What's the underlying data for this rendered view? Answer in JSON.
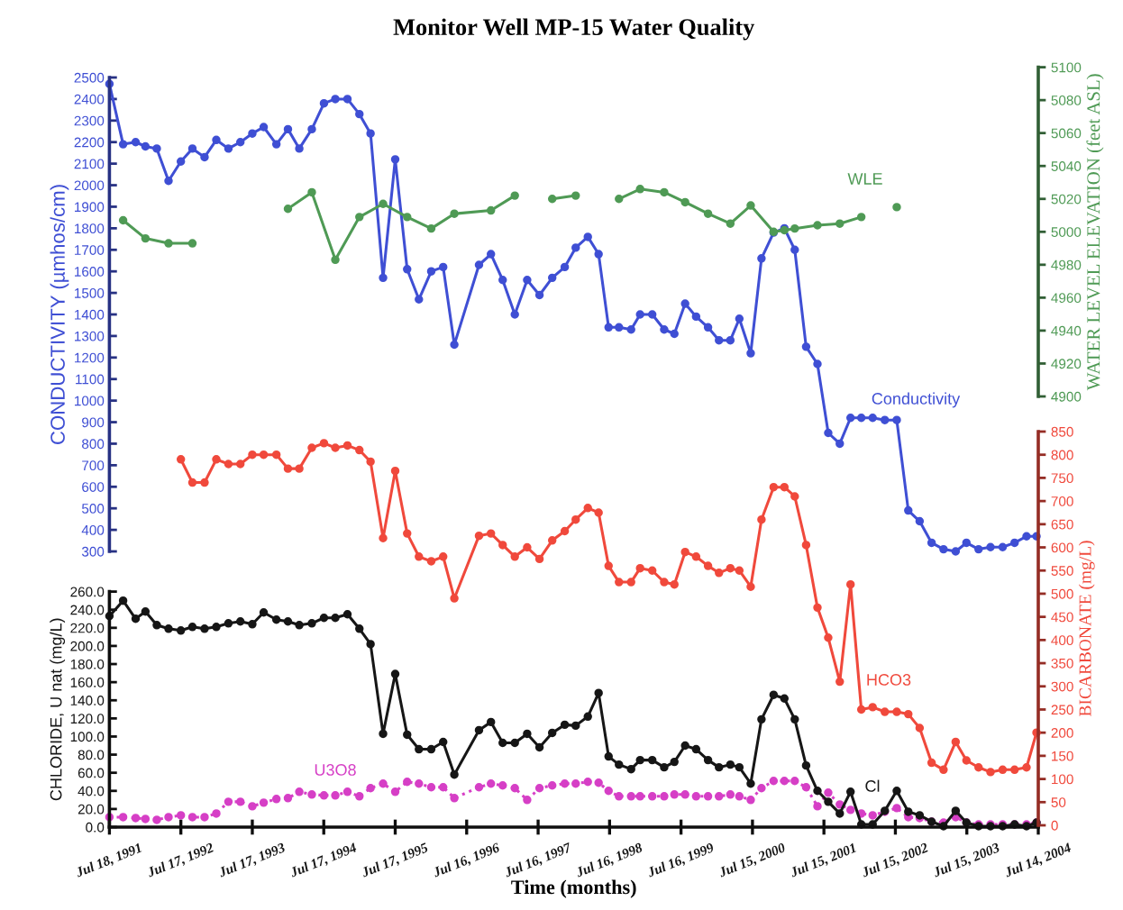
{
  "chart_data": [
    {
      "type": "line",
      "title": "Monitor Well MP-15 Water Quality",
      "ylabel": "CONDUCTIVITY (µmhos/cm)",
      "tick_labels": "y",
      "marker": "circle",
      "line_style": "solid",
      "x": [
        "1991-07-18",
        "1991-09-26",
        "1991-11-29",
        "1992-01-18",
        "1992-03-16",
        "1992-05-15",
        "1992-07-17",
        "1992-09-14",
        "1992-11-15",
        "1993-01-14",
        "1993-03-17",
        "1993-05-17",
        "1993-07-17",
        "1993-09-13",
        "1993-11-17",
        "1994-01-15",
        "1994-03-14",
        "1994-05-17",
        "1994-07-18",
        "1994-09-14",
        "1994-11-15",
        "1995-01-15",
        "1995-03-13",
        "1995-05-16",
        "1995-07-17",
        "1995-09-16",
        "1995-11-15",
        "1996-01-17",
        "1996-03-18",
        "1996-05-14",
        "1996-09-17",
        "1996-11-17",
        "1997-01-16",
        "1997-03-19",
        "1997-05-21",
        "1997-07-23",
        "1997-09-26",
        "1997-11-29",
        "1998-01-24",
        "1998-03-27",
        "1998-05-21",
        "1998-07-11",
        "1998-09-02",
        "1998-11-03",
        "1998-12-19",
        "1999-02-19",
        "1999-04-21",
        "1999-06-12",
        "1999-08-06",
        "1999-10-01",
        "1999-12-01",
        "2000-01-26",
        "2000-03-24",
        "2000-05-09",
        "2000-07-06",
        "2000-08-30",
        "2000-10-31",
        "2000-12-25",
        "2001-02-16",
        "2001-04-15",
        "2001-06-12",
        "2001-08-06",
        "2001-10-04",
        "2001-11-28",
        "2002-01-22",
        "2002-03-21",
        "2002-05-22",
        "2002-07-22",
        "2002-09-19",
        "2002-11-16",
        "2003-01-16",
        "2003-03-18",
        "2003-05-19",
        "2003-07-13",
        "2003-09-13",
        "2003-11-13",
        "2004-01-14",
        "2004-03-15",
        "2004-05-15",
        "2004-07-05"
      ],
      "xlim": [
        "1991-07-18",
        "2004-07-14"
      ],
      "ylim": [
        300,
        2500
      ],
      "yticks": [
        300,
        400,
        500,
        600,
        700,
        800,
        900,
        1000,
        1100,
        1200,
        1300,
        1400,
        1500,
        1600,
        1700,
        1800,
        1900,
        2000,
        2100,
        2200,
        2300,
        2400,
        2500
      ],
      "series": [
        {
          "name": "Conductivity",
          "color": "#3f4fd4",
          "values": [
            2470,
            2190,
            2200,
            2180,
            2170,
            2020,
            2110,
            2170,
            2130,
            2210,
            2170,
            2200,
            2240,
            2270,
            2190,
            2260,
            2170,
            2260,
            2380,
            2400,
            2400,
            2330,
            2240,
            1570,
            2120,
            1610,
            1470,
            1600,
            1620,
            1260,
            1630,
            1680,
            1560,
            1400,
            1560,
            1490,
            1570,
            1620,
            1710,
            1760,
            1680,
            1340,
            1340,
            1330,
            1400,
            1400,
            1330,
            1310,
            1450,
            1390,
            1340,
            1280,
            1280,
            1380,
            1220,
            1660,
            1780,
            1800,
            1700,
            1250,
            1170,
            850,
            800,
            920,
            920,
            920,
            910,
            910,
            490,
            440,
            340,
            310,
            300,
            340,
            310,
            320,
            320,
            340,
            370,
            370
          ]
        }
      ]
    },
    {
      "type": "line",
      "ylabel": "WATER LEVEL ELEVATION (feet ASL)",
      "tick_labels": "y",
      "marker": "circle",
      "line_style": "solid",
      "x": [
        "1991-09-26",
        "1992-01-18",
        "1992-05-15",
        "1992-09-14",
        "1993-05-17",
        "1994-01-15",
        "1994-05-17",
        "1994-09-14",
        "1995-01-15",
        "1995-05-16",
        "1995-09-16",
        "1996-01-17",
        "1996-05-14",
        "1996-11-17",
        "1997-03-19",
        "1997-07-23",
        "1997-09-26",
        "1998-01-24",
        "1998-05-21",
        "1998-09-02",
        "1998-12-19",
        "1999-04-21",
        "1999-08-06",
        "1999-12-01",
        "2000-03-24",
        "2000-07-06",
        "2000-10-31",
        "2000-12-25",
        "2001-02-16",
        "2001-06-12",
        "2001-10-04",
        "2002-01-22",
        "2002-03-21",
        "2002-07-22"
      ],
      "xlim": [
        "1991-07-18",
        "2004-07-14"
      ],
      "ylim": [
        4900,
        5100
      ],
      "yticks": [
        4900,
        4920,
        4940,
        4960,
        4980,
        5000,
        5020,
        5040,
        5060,
        5080,
        5100
      ],
      "series": [
        {
          "name": "WLE",
          "color": "#4f9a55",
          "values": [
            5007,
            4996,
            4993,
            4993,
            null,
            5014,
            5024,
            4983,
            5009,
            5017,
            5009,
            5002,
            5011,
            5013,
            5022,
            null,
            5020,
            5022,
            null,
            5020,
            5026,
            5024,
            5018,
            5011,
            5005,
            5016,
            5000,
            5001,
            5002,
            5004,
            5005,
            5009,
            null,
            5015
          ]
        }
      ]
    },
    {
      "type": "line",
      "xlabel": "Time (months)",
      "ylabel": "CHLORIDE, U nat (mg/L)",
      "marker": "circle",
      "line_style": "solid",
      "x": [
        "1991-07-18",
        "1991-09-26",
        "1991-11-29",
        "1992-01-18",
        "1992-03-16",
        "1992-05-15",
        "1992-07-17",
        "1992-09-14",
        "1992-11-15",
        "1993-01-14",
        "1993-03-17",
        "1993-05-17",
        "1993-07-17",
        "1993-09-13",
        "1993-11-17",
        "1994-01-15",
        "1994-03-14",
        "1994-05-17",
        "1994-07-18",
        "1994-09-14",
        "1994-11-15",
        "1995-01-15",
        "1995-03-13",
        "1995-05-16",
        "1995-07-17",
        "1995-09-16",
        "1995-11-15",
        "1996-01-17",
        "1996-03-18",
        "1996-05-14",
        "1996-09-17",
        "1996-11-17",
        "1997-01-16",
        "1997-03-19",
        "1997-05-21",
        "1997-07-23",
        "1997-09-26",
        "1997-11-29",
        "1998-01-24",
        "1998-03-27",
        "1998-05-21",
        "1998-07-11",
        "1998-09-02",
        "1998-11-03",
        "1998-12-19",
        "1999-02-19",
        "1999-04-21",
        "1999-06-12",
        "1999-08-06",
        "1999-10-01",
        "1999-12-01",
        "2000-01-26",
        "2000-03-24",
        "2000-05-09",
        "2000-07-06",
        "2000-08-30",
        "2000-10-31",
        "2000-12-25",
        "2001-02-16",
        "2001-04-15",
        "2001-06-12",
        "2001-08-06",
        "2001-10-04",
        "2001-11-28",
        "2002-01-22",
        "2002-03-21",
        "2002-05-22",
        "2002-07-22",
        "2002-09-19",
        "2002-11-16",
        "2003-01-16",
        "2003-03-18",
        "2003-05-19",
        "2003-07-13",
        "2003-09-13",
        "2003-11-13",
        "2004-01-14",
        "2004-03-15",
        "2004-05-15",
        "2004-07-05"
      ],
      "xlim": [
        "1991-07-18",
        "2004-07-14"
      ],
      "xticks": [
        {
          "value": "1991-07-18",
          "label": "Jul 18, 1991"
        },
        {
          "value": "1992-07-17",
          "label": "Jul 17, 1992"
        },
        {
          "value": "1993-07-17",
          "label": "Jul 17, 1993"
        },
        {
          "value": "1994-07-17",
          "label": "Jul 17, 1994"
        },
        {
          "value": "1995-07-17",
          "label": "Jul 17, 1995"
        },
        {
          "value": "1996-07-16",
          "label": "Jul 16, 1996"
        },
        {
          "value": "1997-07-16",
          "label": "Jul 16, 1997"
        },
        {
          "value": "1998-07-16",
          "label": "Jul 16, 1998"
        },
        {
          "value": "1999-07-16",
          "label": "Jul 16, 1999"
        },
        {
          "value": "2000-07-15",
          "label": "Jul 15, 2000"
        },
        {
          "value": "2001-07-15",
          "label": "Jul 15, 2001"
        },
        {
          "value": "2002-07-15",
          "label": "Jul 15, 2002"
        },
        {
          "value": "2003-07-15",
          "label": "Jul 15, 2003"
        },
        {
          "value": "2004-07-14",
          "label": "Jul 14, 2004"
        }
      ],
      "ylim": [
        0,
        260
      ],
      "yticks": [
        {
          "value": 0,
          "label": "0.0"
        },
        {
          "value": 20,
          "label": "20.0"
        },
        {
          "value": 40,
          "label": "40.0"
        },
        {
          "value": 60,
          "label": "60.0"
        },
        {
          "value": 80,
          "label": "80.0"
        },
        {
          "value": 100,
          "label": "100.0"
        },
        {
          "value": 120,
          "label": "120.0"
        },
        {
          "value": 140,
          "label": "140.0"
        },
        {
          "value": 160,
          "label": "160.0"
        },
        {
          "value": 180,
          "label": "180.0"
        },
        {
          "value": 200,
          "label": "200.0"
        },
        {
          "value": 220,
          "label": "220.0"
        },
        {
          "value": 240,
          "label": "240.0"
        },
        {
          "value": 260,
          "label": "260.0"
        }
      ],
      "series": [
        {
          "name": "U3O8",
          "color": "#d63fc6",
          "line_style": "dotted",
          "values": [
            11,
            11,
            10,
            9,
            8,
            11,
            13,
            11,
            11,
            15,
            28,
            28,
            23,
            27,
            31,
            32,
            39,
            36,
            35,
            35,
            39,
            34,
            43,
            48,
            39,
            50,
            48,
            44,
            44,
            32,
            44,
            48,
            46,
            43,
            30,
            43,
            46,
            48,
            48,
            50,
            49,
            40,
            34,
            34,
            34,
            34,
            34,
            36,
            36,
            34,
            34,
            34,
            36,
            34,
            30,
            43,
            51,
            51,
            51,
            44,
            23,
            38,
            25,
            19,
            15,
            13,
            17,
            21,
            11,
            10,
            6,
            5,
            11,
            5,
            3,
            3,
            3,
            3,
            3,
            5
          ]
        },
        {
          "name": "Cl",
          "color": "#161616",
          "values": [
            233,
            250,
            230,
            238,
            223,
            219,
            217,
            221,
            219,
            221,
            225,
            227,
            224,
            237,
            229,
            227,
            223,
            225,
            231,
            231,
            235,
            219,
            202,
            103,
            169,
            102,
            86,
            86,
            94,
            58,
            107,
            116,
            93,
            93,
            103,
            88,
            104,
            113,
            112,
            122,
            148,
            78,
            69,
            64,
            74,
            74,
            66,
            72,
            90,
            86,
            74,
            66,
            69,
            66,
            48,
            119,
            146,
            142,
            119,
            68,
            40,
            28,
            15,
            39,
            3,
            3,
            18,
            40,
            17,
            13,
            6,
            1,
            18,
            5,
            1,
            1,
            1,
            3,
            1,
            5
          ]
        }
      ]
    },
    {
      "type": "line",
      "ylabel": "BICARBONATE (mg/L)",
      "tick_labels": "y",
      "marker": "circle",
      "line_style": "solid",
      "x": [
        "1992-07-17",
        "1992-09-14",
        "1992-11-15",
        "1993-01-14",
        "1993-03-17",
        "1993-05-17",
        "1993-07-17",
        "1993-09-13",
        "1993-11-17",
        "1994-01-15",
        "1994-03-14",
        "1994-05-17",
        "1994-07-18",
        "1994-09-14",
        "1994-11-15",
        "1995-01-15",
        "1995-03-13",
        "1995-05-16",
        "1995-07-17",
        "1995-09-16",
        "1995-11-15",
        "1996-01-17",
        "1996-03-18",
        "1996-05-14",
        "1996-09-17",
        "1996-11-17",
        "1997-01-16",
        "1997-03-19",
        "1997-05-21",
        "1997-07-23",
        "1997-09-26",
        "1997-11-29",
        "1998-01-24",
        "1998-03-27",
        "1998-05-21",
        "1998-07-11",
        "1998-09-02",
        "1998-11-03",
        "1998-12-19",
        "1999-02-19",
        "1999-04-21",
        "1999-06-12",
        "1999-08-06",
        "1999-10-01",
        "1999-12-01",
        "2000-01-26",
        "2000-03-24",
        "2000-05-09",
        "2000-07-06",
        "2000-08-30",
        "2000-10-31",
        "2000-12-25",
        "2001-02-16",
        "2001-04-15",
        "2001-06-12",
        "2001-08-06",
        "2001-10-04",
        "2001-11-28",
        "2002-01-22",
        "2002-03-21",
        "2002-05-22",
        "2002-07-22",
        "2002-09-19",
        "2002-11-16",
        "2003-01-16",
        "2003-03-18",
        "2003-05-19",
        "2003-07-13",
        "2003-09-13",
        "2003-11-13",
        "2004-01-14",
        "2004-03-15",
        "2004-05-15",
        "2004-07-05"
      ],
      "xlim": [
        "1991-07-18",
        "2004-07-14"
      ],
      "ylim": [
        0,
        850
      ],
      "yticks": [
        0,
        50,
        100,
        150,
        200,
        250,
        300,
        350,
        400,
        450,
        500,
        550,
        600,
        650,
        700,
        750,
        800,
        850
      ],
      "series": [
        {
          "name": "HCO3",
          "color": "#f0493c",
          "values": [
            790,
            740,
            740,
            790,
            780,
            780,
            800,
            800,
            800,
            770,
            770,
            815,
            825,
            815,
            820,
            810,
            785,
            620,
            765,
            630,
            580,
            570,
            580,
            490,
            625,
            630,
            605,
            580,
            600,
            575,
            615,
            635,
            660,
            685,
            675,
            560,
            525,
            525,
            555,
            550,
            525,
            520,
            590,
            580,
            560,
            545,
            555,
            550,
            515,
            660,
            730,
            730,
            710,
            605,
            470,
            405,
            310,
            520,
            250,
            255,
            245,
            245,
            240,
            210,
            135,
            120,
            180,
            140,
            125,
            115,
            120,
            120,
            125,
            200
          ]
        }
      ]
    }
  ]
}
